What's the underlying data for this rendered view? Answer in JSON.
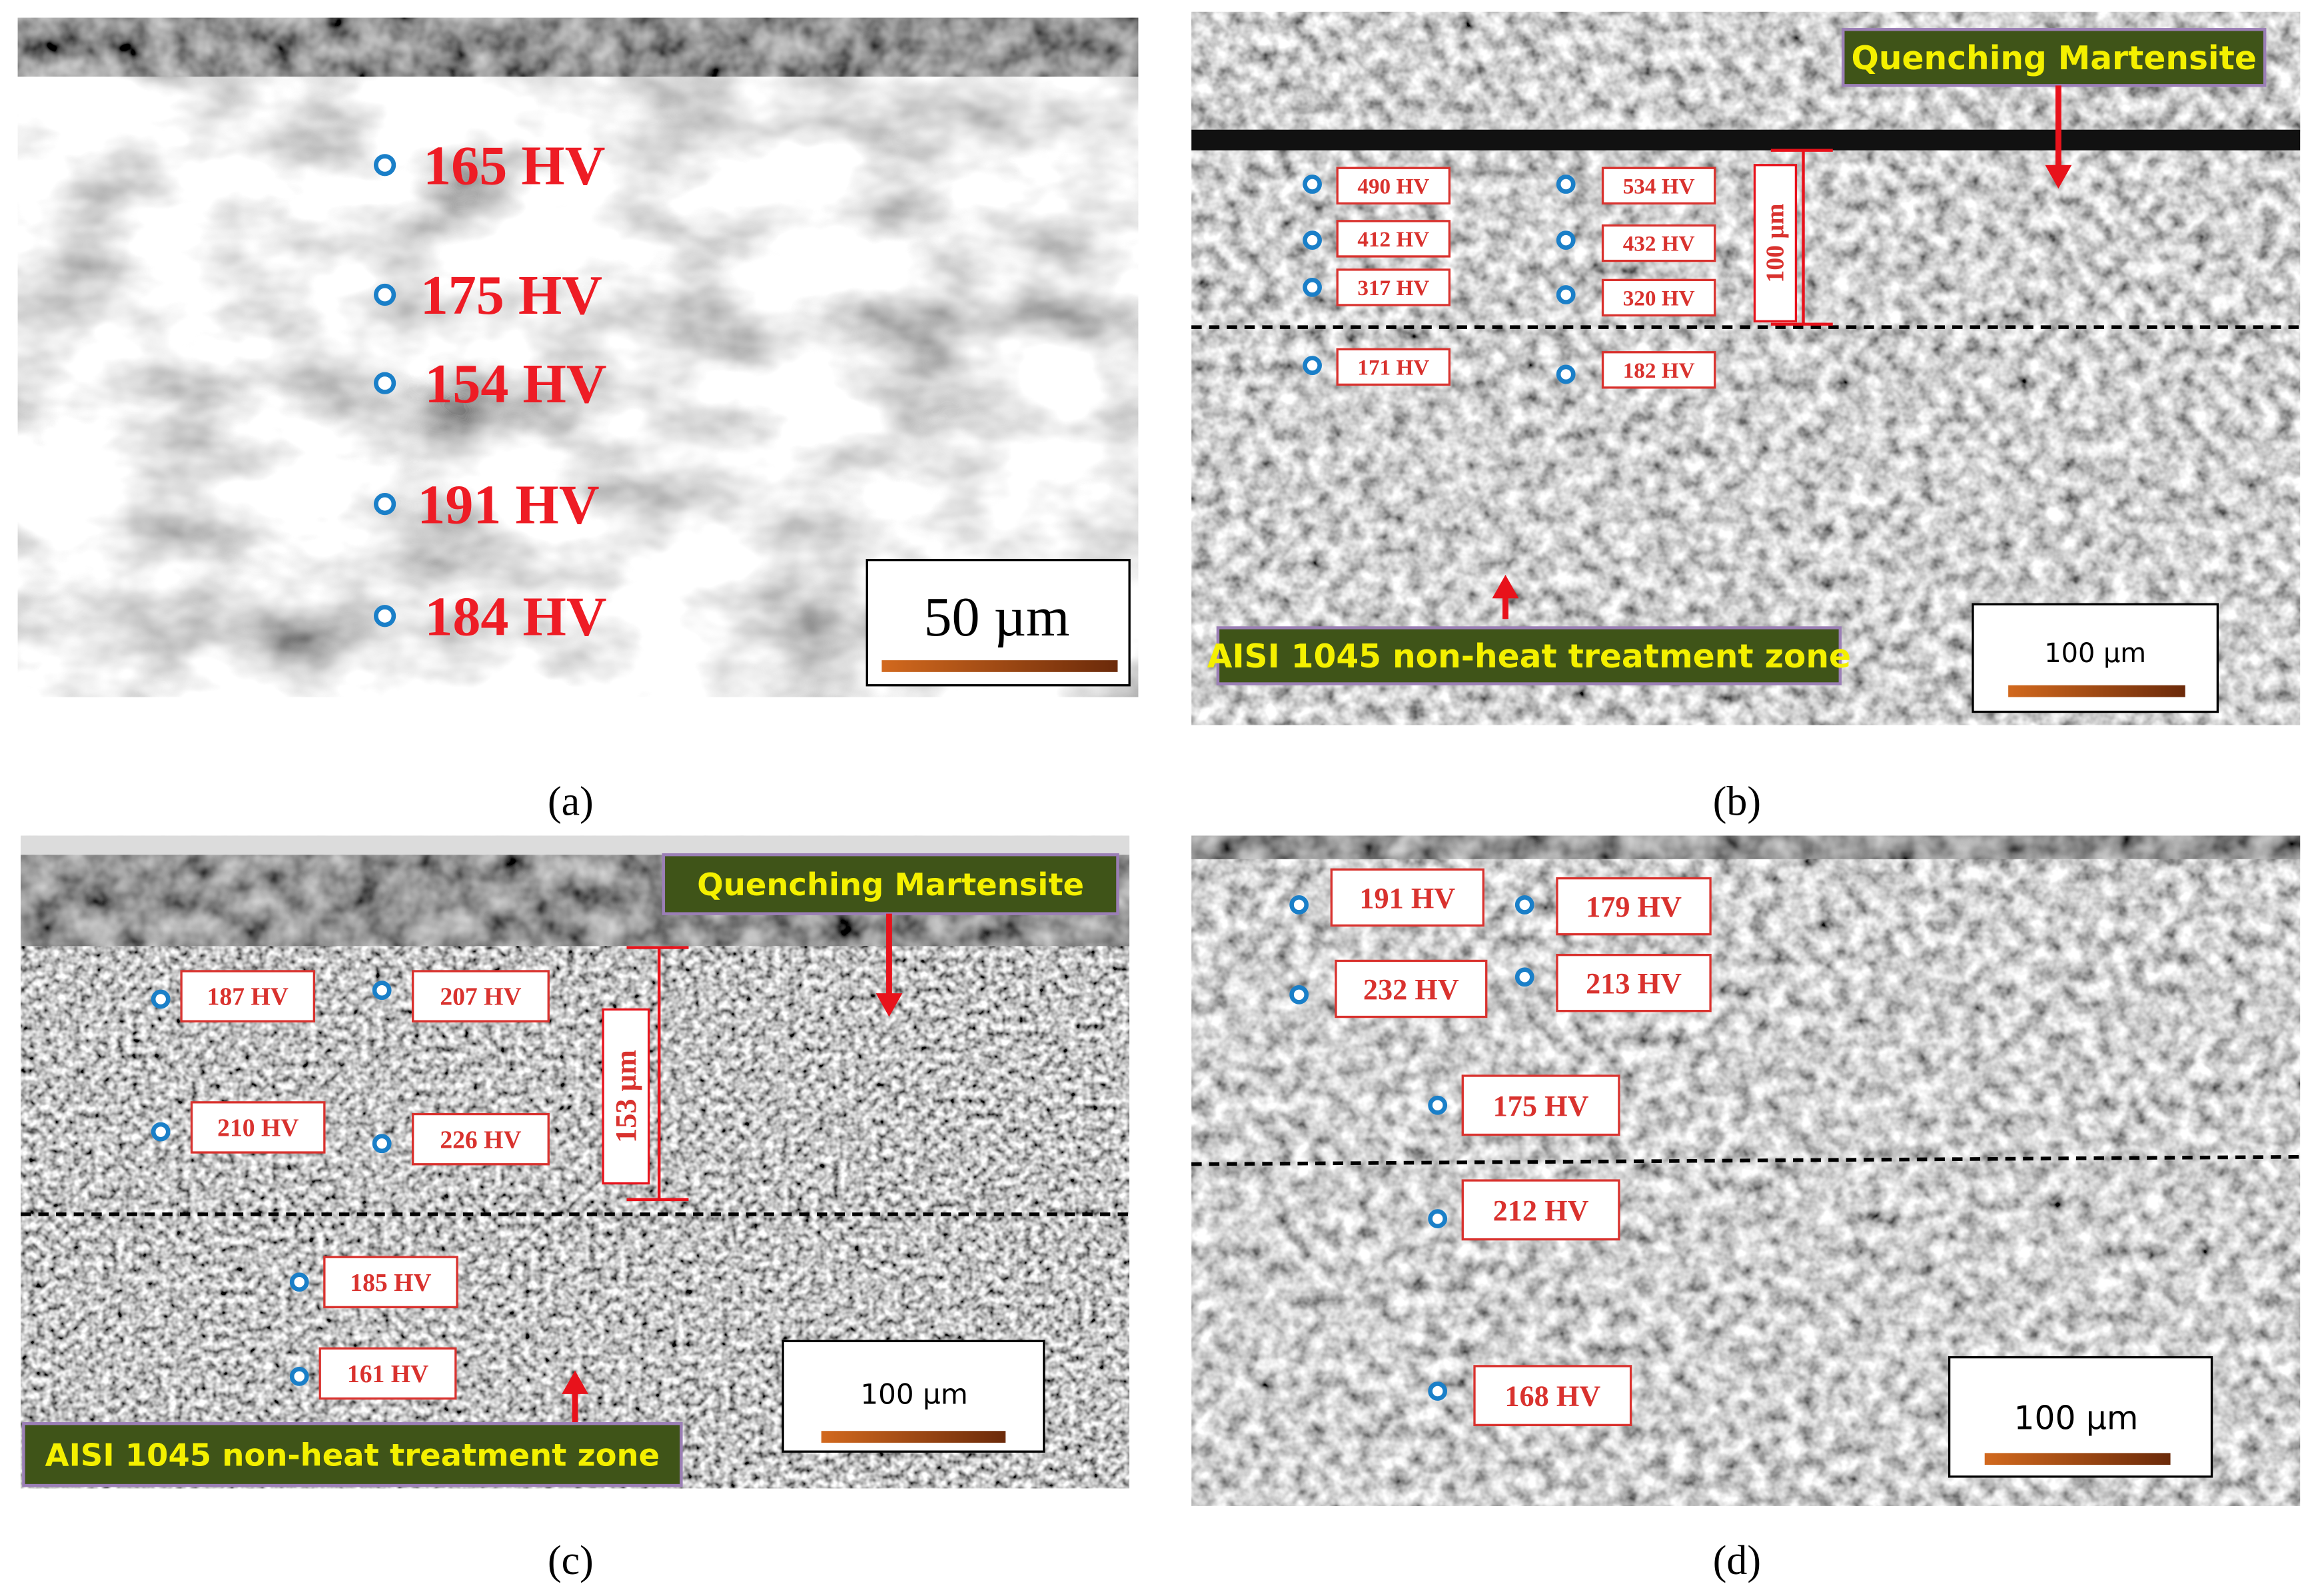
{
  "panels": [
    {
      "caption": "(a)",
      "labels": [
        "165 HV",
        "175 HV",
        "154 HV",
        "191 HV",
        "184 HV"
      ],
      "scale_bar": "50 µm"
    },
    {
      "caption": "(b)",
      "labels": [
        "490 HV",
        "412 HV",
        "317 HV",
        "171 HV",
        "534 HV",
        "432 HV",
        "320 HV",
        "182 HV"
      ],
      "dimension": "100 µm",
      "zone_labels": [
        "Quenching Martensite",
        "AISI 1045 non-heat treatment zone"
      ],
      "scale_bar": "100 µm"
    },
    {
      "caption": "(c)",
      "labels": [
        "187 HV",
        "207 HV",
        "210 HV",
        "226 HV",
        "185 HV",
        "161 HV"
      ],
      "dimension": "153 µm",
      "zone_labels": [
        "Quenching Martensite",
        "AISI 1045 non-heat treatment zone"
      ],
      "scale_bar": "100 µm"
    },
    {
      "caption": "(d)",
      "labels": [
        "191 HV",
        "179 HV",
        "232 HV",
        "213 HV",
        "175 HV",
        "212 HV",
        "168 HV"
      ],
      "scale_bar": "100 µm"
    }
  ]
}
